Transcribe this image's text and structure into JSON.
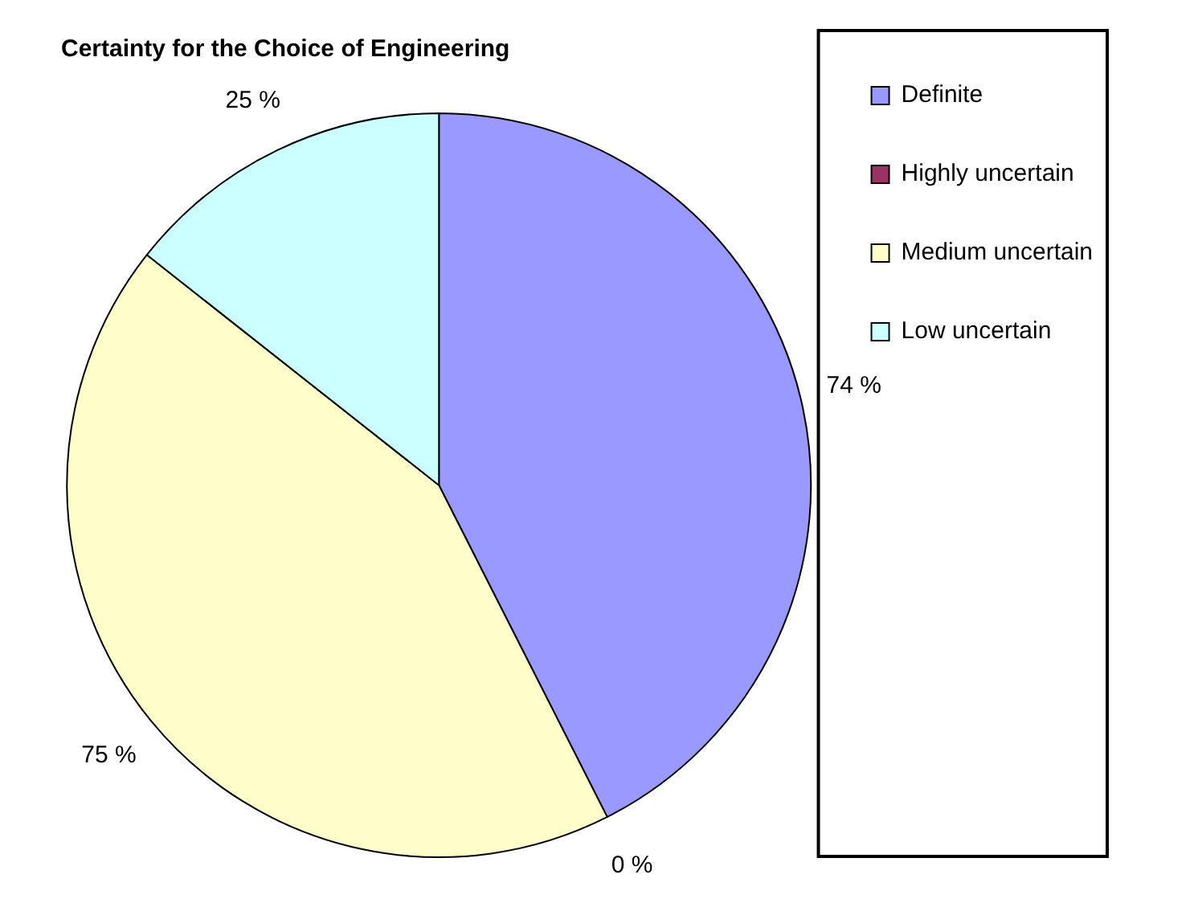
{
  "chart_data": {
    "type": "pie",
    "title": "Certainty for the Choice of Engineering",
    "categories": [
      "Definite",
      "Highly uncertain",
      "Medium uncertain",
      "Low uncertain"
    ],
    "values": [
      74,
      0,
      75,
      25
    ],
    "value_labels": [
      "74 %",
      "0 %",
      "75 %",
      "25 %"
    ],
    "colors": [
      "#9999ff",
      "#993366",
      "#ffffcc",
      "#ccffff"
    ],
    "legend": "top right"
  }
}
